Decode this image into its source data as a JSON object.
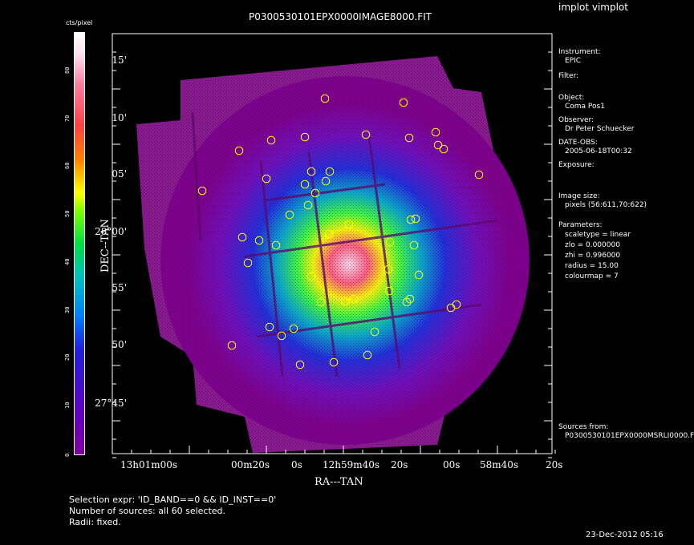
{
  "app": {
    "title": "implot vimplot"
  },
  "plot": {
    "title": "P0300530101EPX0000IMAGE8000.FIT"
  },
  "colorbar": {
    "label": "cts/pixel",
    "ticks": [
      "0",
      "10",
      "20",
      "30",
      "40",
      "50",
      "60",
      "70",
      "80"
    ]
  },
  "axes": {
    "xlabel": "RA---TAN",
    "ylabel": "DEC--TAN",
    "xticks": [
      "13h01m00s",
      "00m20s",
      "0s",
      "12h59m40s",
      "20s",
      "00s",
      "58m40s",
      "20s"
    ],
    "yticks": [
      "15'",
      "10'",
      "05'",
      "28°00'",
      "55'",
      "50'",
      "27°45'"
    ]
  },
  "info": {
    "instrument_label": "Instrument:",
    "instrument_value": "EPIC",
    "filter_label": "Filter:",
    "object_label": "Object:",
    "object_value": "Coma Pos1",
    "observer_label": "Observer:",
    "observer_value": "Dr Peter Schuecker",
    "date_label": "DATE-OBS:",
    "date_value": "2005-06-18T00:32",
    "exposure_label": "Exposure:",
    "imagesize_label": "Image size:",
    "imagesize_value": "pixels (56:611,70:622)",
    "params_label": "Parameters:",
    "param_scaletype": "scaletype = linear",
    "param_zlo": "zlo = 0.000000",
    "param_zhi": "zhi = 0.996000",
    "param_radius": "radius = 15.00",
    "param_colourmap": "colourmap = 7",
    "sources_label": "Sources from:",
    "sources_value": "P0300530101EPX0000MSRLI0000.F"
  },
  "footer": {
    "selection": "Selection expr: 'ID_BAND==0 && ID_INST==0'",
    "nsources": "Number of sources: all 60 selected.",
    "radii": "Radii: fixed.",
    "timestamp": "23-Dec-2012 05:16"
  },
  "colors": {
    "source_marker": "#ffff00",
    "background": "#000000",
    "frame": "#ffffff"
  }
}
